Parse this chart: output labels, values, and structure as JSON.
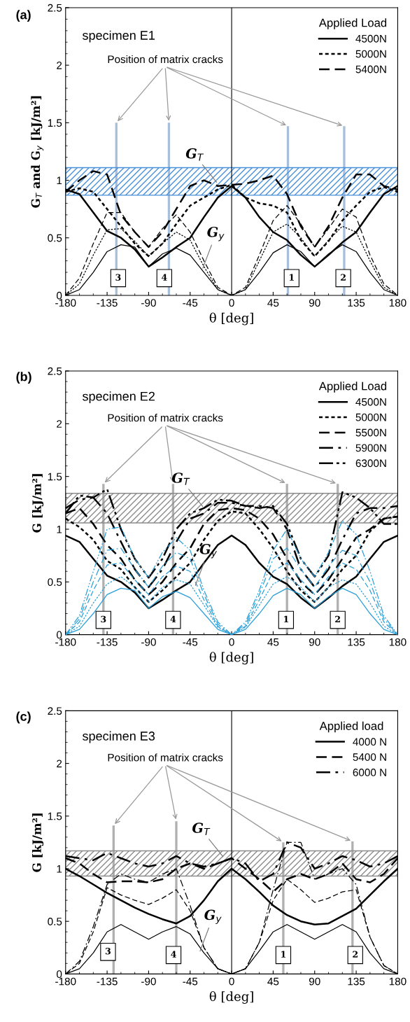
{
  "chart_data": [
    {
      "type": "line",
      "title": "(a)",
      "subtitle": "specimen E1",
      "xlabel": "θ [deg]",
      "ylabel": "G$_{T}$ and G$_{y}$ [kJ/m²]",
      "legend_title": "Applied Load",
      "legend": "top right",
      "x": [
        -180,
        -165,
        -150,
        -135,
        -120,
        -105,
        -90,
        -75,
        -60,
        -45,
        -30,
        -15,
        0,
        15,
        30,
        45,
        60,
        75,
        90,
        105,
        120,
        135,
        150,
        165,
        180
      ],
      "xlim": [
        -180,
        180
      ],
      "xticks": [
        -180,
        -135,
        -90,
        -45,
        0,
        45,
        90,
        135,
        180
      ],
      "ylim": [
        0,
        2.5
      ],
      "yticks": [
        0,
        0.5,
        1,
        1.5,
        2,
        2.5
      ],
      "series": [
        {
          "type": "bar",
          "color": "#a8bfdc",
          "x": [
            -125,
            -68,
            61,
            122
          ],
          "values": [
            1.5,
            1.5,
            1.47,
            1.47
          ]
        },
        {
          "name": "4500N",
          "color": "#000000",
          "line_style": "solid",
          "values": [
            0.92,
            0.88,
            0.72,
            0.56,
            0.5,
            0.4,
            0.25,
            0.33,
            0.42,
            0.5,
            0.68,
            0.85,
            0.95,
            0.85,
            0.68,
            0.55,
            0.48,
            0.35,
            0.25,
            0.35,
            0.46,
            0.55,
            0.72,
            0.88,
            0.95
          ]
        },
        {
          "name": "5000N",
          "color": "#000000",
          "line_style": "dotted",
          "values": [
            0.9,
            0.93,
            0.9,
            0.75,
            0.6,
            0.45,
            0.34,
            0.45,
            0.62,
            0.78,
            0.85,
            0.92,
            0.96,
            0.85,
            0.8,
            0.78,
            0.72,
            0.48,
            0.34,
            0.47,
            0.65,
            0.78,
            0.9,
            0.94,
            0.9
          ]
        },
        {
          "name": "5400N",
          "color": "#000000",
          "line_style": "dashed",
          "values": [
            0.9,
            1.0,
            1.08,
            1.05,
            0.7,
            0.55,
            0.42,
            0.55,
            0.75,
            0.95,
            1.0,
            0.95,
            0.96,
            0.97,
            1.0,
            1.04,
            0.88,
            0.6,
            0.42,
            0.6,
            0.85,
            1.05,
            1.05,
            0.95,
            0.92
          ]
        },
        {
          "color": "#000000",
          "line_style": "solid",
          "values": [
            0,
            0.05,
            0.2,
            0.38,
            0.44,
            0.42,
            0.25,
            0.36,
            0.41,
            0.35,
            0.2,
            0.05,
            0,
            0.05,
            0.2,
            0.37,
            0.44,
            0.38,
            0.25,
            0.36,
            0.44,
            0.38,
            0.2,
            0.05,
            0
          ]
        },
        {
          "color": "#000000",
          "line_style": "dotted",
          "values": [
            0,
            0.1,
            0.35,
            0.57,
            0.58,
            0.47,
            0.34,
            0.45,
            0.55,
            0.48,
            0.25,
            0.05,
            0,
            0.05,
            0.3,
            0.55,
            0.62,
            0.5,
            0.34,
            0.48,
            0.6,
            0.55,
            0.3,
            0.07,
            0
          ]
        },
        {
          "color": "#000000",
          "line_style": "dashed",
          "values": [
            0,
            0.15,
            0.45,
            0.72,
            0.72,
            0.55,
            0.42,
            0.58,
            0.7,
            0.55,
            0.3,
            0.07,
            0,
            0.07,
            0.35,
            0.65,
            0.78,
            0.62,
            0.42,
            0.58,
            0.75,
            0.68,
            0.35,
            0.1,
            0
          ]
        }
      ],
      "bands": [
        {
          "axis": "y",
          "from": 0.87,
          "to": 1.11,
          "color": "#4a90d9"
        }
      ],
      "ref_lines": [
        {
          "axis": "x",
          "value": 0,
          "color": "#000000"
        }
      ],
      "annotations": [
        {
          "text": "Position of matrix cracks",
          "x": -125,
          "y": 1.5
        },
        {
          "text": "G$_{T}$",
          "x": -15,
          "y": 0.97
        },
        {
          "text": "G$_{y}$",
          "x": -32,
          "y": 0.22
        },
        {
          "text": "3",
          "x": -123,
          "y": 0.15
        },
        {
          "text": "4",
          "x": -73,
          "y": 0.15
        },
        {
          "text": "1",
          "x": 65,
          "y": 0.15
        },
        {
          "text": "2",
          "x": 121,
          "y": 0.15
        }
      ]
    },
    {
      "type": "line",
      "title": "(b)",
      "subtitle": "specimen E2",
      "xlabel": "θ [deg]",
      "ylabel": "G [kJ/m²]",
      "legend_title": "Applied Load",
      "legend": "top right",
      "x": [
        -180,
        -165,
        -150,
        -135,
        -120,
        -105,
        -90,
        -75,
        -60,
        -45,
        -30,
        -15,
        0,
        15,
        30,
        45,
        60,
        75,
        90,
        105,
        120,
        135,
        150,
        165,
        180
      ],
      "xlim": [
        -180,
        180
      ],
      "xticks": [
        -180,
        -135,
        -90,
        -45,
        0,
        45,
        90,
        135,
        180
      ],
      "ylim": [
        0,
        2.5
      ],
      "yticks": [
        0,
        0.5,
        1,
        1.5,
        2,
        2.5
      ],
      "series": [
        {
          "type": "bar",
          "color": "#b0b0b0",
          "x": [
            -139,
            -63.5,
            60,
            115
          ],
          "values": [
            1.43,
            1.43,
            1.43,
            1.43
          ]
        },
        {
          "name": "4500N",
          "color": "#000000",
          "line_style": "solid",
          "values": [
            0.94,
            0.88,
            0.72,
            0.56,
            0.5,
            0.4,
            0.25,
            0.33,
            0.42,
            0.5,
            0.68,
            0.85,
            0.94,
            0.85,
            0.68,
            0.55,
            0.48,
            0.35,
            0.25,
            0.35,
            0.46,
            0.55,
            0.72,
            0.88,
            0.94
          ]
        },
        {
          "name": "5000N",
          "color": "#000000",
          "line_style": "dotted",
          "values": [
            1.1,
            1.02,
            0.9,
            0.7,
            0.62,
            0.45,
            0.31,
            0.42,
            0.55,
            0.68,
            0.9,
            1.08,
            1.17,
            1.15,
            1.0,
            0.82,
            0.6,
            0.42,
            0.31,
            0.45,
            0.62,
            0.75,
            0.98,
            1.1,
            1.12
          ]
        },
        {
          "name": "5500N",
          "color": "#000000",
          "line_style": "dashed",
          "values": [
            1.15,
            1.2,
            1.05,
            0.85,
            0.72,
            0.52,
            0.38,
            0.5,
            0.68,
            0.82,
            1.05,
            1.18,
            1.2,
            1.18,
            1.1,
            0.95,
            0.72,
            0.5,
            0.38,
            0.52,
            0.72,
            0.92,
            1.0,
            1.1,
            1.12
          ]
        },
        {
          "name": "5900N",
          "color": "#000000",
          "line_style": "dashdot",
          "values": [
            1.2,
            1.28,
            1.3,
            1.15,
            0.88,
            0.62,
            0.45,
            0.62,
            0.88,
            1.1,
            1.15,
            1.25,
            1.25,
            1.22,
            1.22,
            1.2,
            1.0,
            0.62,
            0.45,
            0.62,
            0.9,
            1.15,
            1.2,
            1.2,
            1.22
          ]
        },
        {
          "name": "6300N",
          "color": "#000000",
          "line_style": "dashdotdot",
          "values": [
            1.15,
            1.32,
            1.3,
            1.38,
            1.0,
            0.72,
            0.54,
            0.72,
            1.0,
            1.15,
            1.2,
            1.28,
            1.27,
            1.22,
            1.2,
            1.22,
            1.05,
            0.72,
            0.55,
            0.75,
            1.35,
            1.3,
            1.2,
            1.05,
            1.05
          ]
        },
        {
          "color": "#2a9fd8",
          "line_style": "solid",
          "values": [
            0,
            0.05,
            0.2,
            0.38,
            0.44,
            0.42,
            0.25,
            0.36,
            0.41,
            0.35,
            0.2,
            0.05,
            0,
            0.05,
            0.2,
            0.37,
            0.44,
            0.38,
            0.25,
            0.36,
            0.44,
            0.38,
            0.2,
            0.05,
            0
          ]
        },
        {
          "color": "#2a9fd8",
          "line_style": "dotted",
          "values": [
            0,
            0.08,
            0.3,
            0.48,
            0.55,
            0.45,
            0.31,
            0.45,
            0.52,
            0.48,
            0.28,
            0.07,
            0,
            0.07,
            0.28,
            0.48,
            0.55,
            0.45,
            0.31,
            0.45,
            0.52,
            0.48,
            0.3,
            0.08,
            0
          ]
        },
        {
          "color": "#2a9fd8",
          "line_style": "dashed",
          "values": [
            0,
            0.12,
            0.42,
            0.66,
            0.68,
            0.52,
            0.38,
            0.55,
            0.65,
            0.6,
            0.33,
            0.08,
            0,
            0.08,
            0.33,
            0.6,
            0.68,
            0.52,
            0.38,
            0.55,
            0.68,
            0.62,
            0.42,
            0.12,
            0
          ]
        },
        {
          "color": "#2a9fd8",
          "line_style": "dashdot",
          "values": [
            0,
            0.15,
            0.5,
            0.8,
            0.82,
            0.62,
            0.45,
            0.65,
            0.78,
            0.72,
            0.38,
            0.1,
            0,
            0.1,
            0.38,
            0.72,
            0.82,
            0.62,
            0.45,
            0.65,
            0.8,
            0.75,
            0.5,
            0.15,
            0
          ]
        },
        {
          "color": "#2a9fd8",
          "line_style": "dashdotdot",
          "values": [
            0,
            0.18,
            0.6,
            1.0,
            1.02,
            0.72,
            0.54,
            0.78,
            0.92,
            0.8,
            0.42,
            0.12,
            0,
            0.12,
            0.42,
            0.8,
            1.0,
            0.72,
            0.55,
            0.78,
            1.08,
            0.95,
            0.6,
            0.18,
            0
          ]
        }
      ],
      "bands": [
        {
          "axis": "y",
          "from": 1.06,
          "to": 1.34,
          "color": "#8c8c8c"
        }
      ],
      "annotations": [
        {
          "text": "Position of matrix cracks",
          "x": -139,
          "y": 1.43
        },
        {
          "text": "G$_{T}$",
          "x": -30,
          "y": 1.2
        },
        {
          "text": "G$_{y}$",
          "x": -40,
          "y": 0.45
        },
        {
          "text": "3",
          "x": -139,
          "y": 0.14
        },
        {
          "text": "4",
          "x": -63.5,
          "y": 0.14
        },
        {
          "text": "1",
          "x": 59,
          "y": 0.14
        },
        {
          "text": "2",
          "x": 115,
          "y": 0.14
        }
      ]
    },
    {
      "type": "line",
      "title": "(c)",
      "subtitle": "specimen E3",
      "xlabel": "θ [deg]",
      "ylabel": "G [kJ/m²]",
      "legend_title": "Applied load",
      "legend": "top right",
      "x": [
        -180,
        -165,
        -150,
        -135,
        -120,
        -105,
        -90,
        -75,
        -60,
        -45,
        -30,
        -15,
        0,
        15,
        30,
        45,
        60,
        75,
        90,
        105,
        120,
        135,
        150,
        165,
        180
      ],
      "xlim": [
        -180,
        180
      ],
      "xticks": [
        -180,
        -135,
        -90,
        -45,
        0,
        45,
        90,
        135,
        180
      ],
      "ylim": [
        0,
        2.5
      ],
      "yticks": [
        0,
        0.5,
        1,
        1.5,
        2,
        2.5
      ],
      "series": [
        {
          "type": "bar",
          "color": "#b0b0b0",
          "x": [
            -128,
            -60,
            56,
            131
          ],
          "values": [
            1.41,
            1.45,
            1.25,
            1.26
          ]
        },
        {
          "name": "4000 N",
          "color": "#000000",
          "line_style": "solid",
          "values": [
            1.0,
            0.93,
            0.85,
            0.77,
            0.7,
            0.63,
            0.57,
            0.52,
            0.48,
            0.55,
            0.7,
            0.88,
            1.0,
            0.9,
            0.78,
            0.65,
            0.56,
            0.5,
            0.47,
            0.48,
            0.55,
            0.62,
            0.75,
            0.88,
            1.0
          ]
        },
        {
          "name": "5400 N",
          "color": "#000000",
          "line_style": "dashed",
          "values": [
            1.1,
            1.05,
            0.95,
            0.87,
            0.88,
            0.88,
            0.87,
            0.9,
            1.0,
            1.05,
            1.0,
            1.05,
            1.1,
            1.0,
            0.9,
            0.78,
            0.9,
            0.95,
            0.9,
            0.95,
            1.05,
            0.9,
            0.87,
            0.95,
            1.1
          ]
        },
        {
          "name": "6000 N",
          "color": "#000000",
          "line_style": "dashdot",
          "values": [
            1.12,
            1.1,
            1.08,
            1.15,
            1.1,
            1.05,
            1.02,
            1.05,
            1.12,
            1.05,
            1.02,
            1.05,
            1.1,
            1.05,
            0.88,
            0.95,
            1.25,
            1.2,
            1.0,
            1.05,
            1.12,
            1.08,
            1.02,
            1.05,
            1.12
          ]
        },
        {
          "color": "#000000",
          "line_style": "solid",
          "values": [
            0,
            0.05,
            0.2,
            0.4,
            0.47,
            0.4,
            0.33,
            0.4,
            0.45,
            0.38,
            0.2,
            0.05,
            0,
            0.05,
            0.22,
            0.4,
            0.47,
            0.4,
            0.33,
            0.4,
            0.47,
            0.4,
            0.2,
            0.05,
            0
          ]
        },
        {
          "color": "#000000",
          "line_style": "dashed",
          "values": [
            0,
            0.1,
            0.4,
            0.82,
            0.75,
            0.7,
            0.66,
            0.72,
            0.8,
            0.6,
            0.25,
            0.05,
            0,
            0.05,
            0.3,
            0.7,
            0.9,
            0.8,
            0.68,
            0.72,
            0.78,
            0.8,
            0.35,
            0.08,
            0
          ]
        },
        {
          "color": "#000000",
          "line_style": "dashdot",
          "values": [
            0,
            0.12,
            0.45,
            0.85,
            0.95,
            0.9,
            0.87,
            0.95,
            1.0,
            0.65,
            0.25,
            0.05,
            0,
            0.05,
            0.3,
            0.8,
            1.25,
            1.25,
            0.9,
            0.95,
            1.0,
            0.85,
            0.35,
            0.08,
            0
          ]
        }
      ],
      "bands": [
        {
          "axis": "y",
          "from": 0.93,
          "to": 1.17,
          "color": "#8c8c8c"
        }
      ],
      "ref_lines": [
        {
          "axis": "x",
          "value": 0,
          "color": "#000000"
        }
      ],
      "annotations": [
        {
          "text": "Position of matrix cracks",
          "x": -128,
          "y": 1.41
        },
        {
          "text": "G$_{T}$",
          "x": -8,
          "y": 1.1
        },
        {
          "text": "G$_{y}$",
          "x": -35,
          "y": 0.2
        },
        {
          "text": "3",
          "x": -134,
          "y": 0.21
        },
        {
          "text": "4",
          "x": -63,
          "y": 0.18
        },
        {
          "text": "1",
          "x": 56,
          "y": 0.18
        },
        {
          "text": "2",
          "x": 134,
          "y": 0.18
        }
      ]
    }
  ]
}
